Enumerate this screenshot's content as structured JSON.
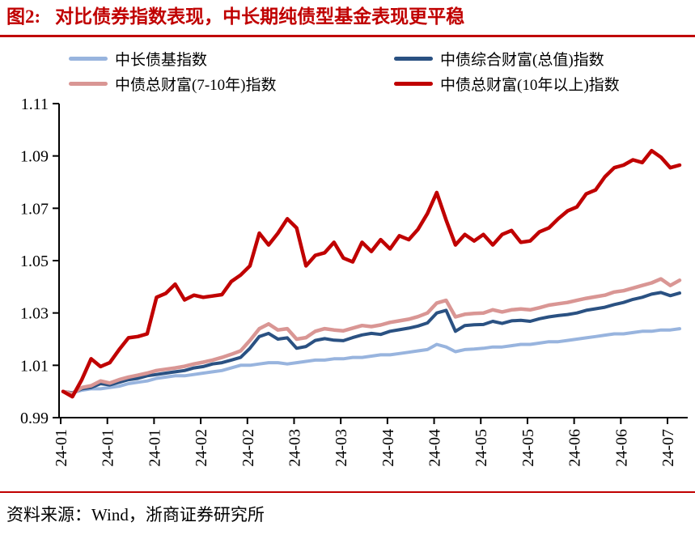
{
  "title": {
    "prefix": "图2:",
    "text": "对比债券指数表现，中长期纯债型基金表现更平稳"
  },
  "footer": {
    "source_label": "资料来源：Wind，浙商证券研究所"
  },
  "colors": {
    "title_red": "#C00000",
    "rule_red": "#C00000",
    "axis_black": "#000000",
    "background": "#FFFFFF"
  },
  "chart_data": {
    "type": "line",
    "title": "对比债券指数表现，中长期纯债型基金表现更平稳",
    "xlabel": "",
    "ylabel": "",
    "ylim": [
      0.99,
      1.11
    ],
    "grid": false,
    "legend_position": "top",
    "yticks": [
      "0.99",
      "1.01",
      "1.03",
      "1.05",
      "1.07",
      "1.09",
      "1.11"
    ],
    "xticklabels": [
      "24-01",
      "24-01",
      "24-01",
      "24-02",
      "24-02",
      "24-03",
      "24-03",
      "24-04",
      "24-04",
      "24-05",
      "24-05",
      "24-06",
      "24-06",
      "24-07"
    ],
    "series": [
      {
        "name": "中长债基指数",
        "color": "#98B4DE",
        "width": 4,
        "values": [
          1.0,
          0.9995,
          1.0005,
          1.001,
          1.001,
          1.0015,
          1.002,
          1.003,
          1.0035,
          1.004,
          1.005,
          1.0055,
          1.006,
          1.006,
          1.0065,
          1.007,
          1.0075,
          1.008,
          1.009,
          1.01,
          1.01,
          1.0105,
          1.011,
          1.011,
          1.0105,
          1.011,
          1.0115,
          1.012,
          1.012,
          1.0125,
          1.0125,
          1.013,
          1.013,
          1.0135,
          1.014,
          1.014,
          1.0145,
          1.015,
          1.0155,
          1.016,
          1.018,
          1.017,
          1.0152,
          1.016,
          1.0162,
          1.0165,
          1.017,
          1.017,
          1.0175,
          1.018,
          1.018,
          1.0185,
          1.019,
          1.019,
          1.0195,
          1.02,
          1.0205,
          1.021,
          1.0215,
          1.022,
          1.022,
          1.0225,
          1.023,
          1.023,
          1.0235,
          1.0235,
          1.024
        ]
      },
      {
        "name": "中债综合财富(总值)指数",
        "color": "#2A5182",
        "width": 4,
        "values": [
          1.0,
          0.9995,
          1.001,
          1.0015,
          1.003,
          1.0025,
          1.0035,
          1.0045,
          1.005,
          1.006,
          1.0065,
          1.007,
          1.0075,
          1.008,
          1.009,
          1.0095,
          1.0105,
          1.011,
          1.012,
          1.013,
          1.0165,
          1.021,
          1.0222,
          1.02,
          1.0205,
          1.0165,
          1.0172,
          1.0195,
          1.0202,
          1.0196,
          1.0194,
          1.0206,
          1.0216,
          1.0222,
          1.0218,
          1.023,
          1.0236,
          1.0242,
          1.025,
          1.0262,
          1.03,
          1.031,
          1.023,
          1.0252,
          1.0255,
          1.0256,
          1.0268,
          1.026,
          1.027,
          1.0272,
          1.0268,
          1.0278,
          1.0285,
          1.029,
          1.0294,
          1.03,
          1.031,
          1.0316,
          1.0322,
          1.0332,
          1.034,
          1.0352,
          1.036,
          1.0372,
          1.0378,
          1.0366,
          1.0376
        ]
      },
      {
        "name": "中债总财富(7-10年)指数",
        "color": "#D99694",
        "width": 4.5,
        "values": [
          1.0,
          0.9992,
          1.0015,
          1.0022,
          1.004,
          1.0032,
          1.0045,
          1.0055,
          1.0062,
          1.007,
          1.008,
          1.0085,
          1.009,
          1.0096,
          1.0105,
          1.0112,
          1.012,
          1.013,
          1.0142,
          1.0155,
          1.0195,
          1.024,
          1.0258,
          1.0235,
          1.024,
          1.02,
          1.0206,
          1.023,
          1.024,
          1.0235,
          1.0232,
          1.0242,
          1.0252,
          1.0248,
          1.0254,
          1.0264,
          1.027,
          1.0276,
          1.0286,
          1.03,
          1.0338,
          1.0348,
          1.0285,
          1.0295,
          1.0298,
          1.03,
          1.0312,
          1.0304,
          1.0312,
          1.0315,
          1.0312,
          1.032,
          1.033,
          1.0335,
          1.034,
          1.0348,
          1.0356,
          1.0362,
          1.0368,
          1.038,
          1.0385,
          1.0395,
          1.0405,
          1.0415,
          1.043,
          1.0405,
          1.0425
        ]
      },
      {
        "name": "中债总财富(10年以上)指数",
        "color": "#C00000",
        "width": 4.5,
        "values": [
          1.0,
          0.998,
          1.0045,
          1.0125,
          1.0095,
          1.011,
          1.016,
          1.0205,
          1.021,
          1.022,
          1.036,
          1.0375,
          1.041,
          1.035,
          1.0368,
          1.036,
          1.0365,
          1.037,
          1.042,
          1.0445,
          1.048,
          1.0605,
          1.056,
          1.0605,
          1.066,
          1.0625,
          1.048,
          1.052,
          1.053,
          1.057,
          1.051,
          1.0495,
          1.057,
          1.0535,
          1.058,
          1.0545,
          1.0595,
          1.058,
          1.062,
          1.068,
          1.076,
          1.0655,
          1.056,
          1.06,
          1.0575,
          1.06,
          1.056,
          1.06,
          1.0615,
          1.057,
          1.0575,
          1.061,
          1.0625,
          1.066,
          1.069,
          1.0705,
          1.0755,
          1.077,
          1.082,
          1.0855,
          1.0865,
          1.0885,
          1.0875,
          1.092,
          1.0895,
          1.0855,
          1.0865
        ]
      }
    ]
  }
}
